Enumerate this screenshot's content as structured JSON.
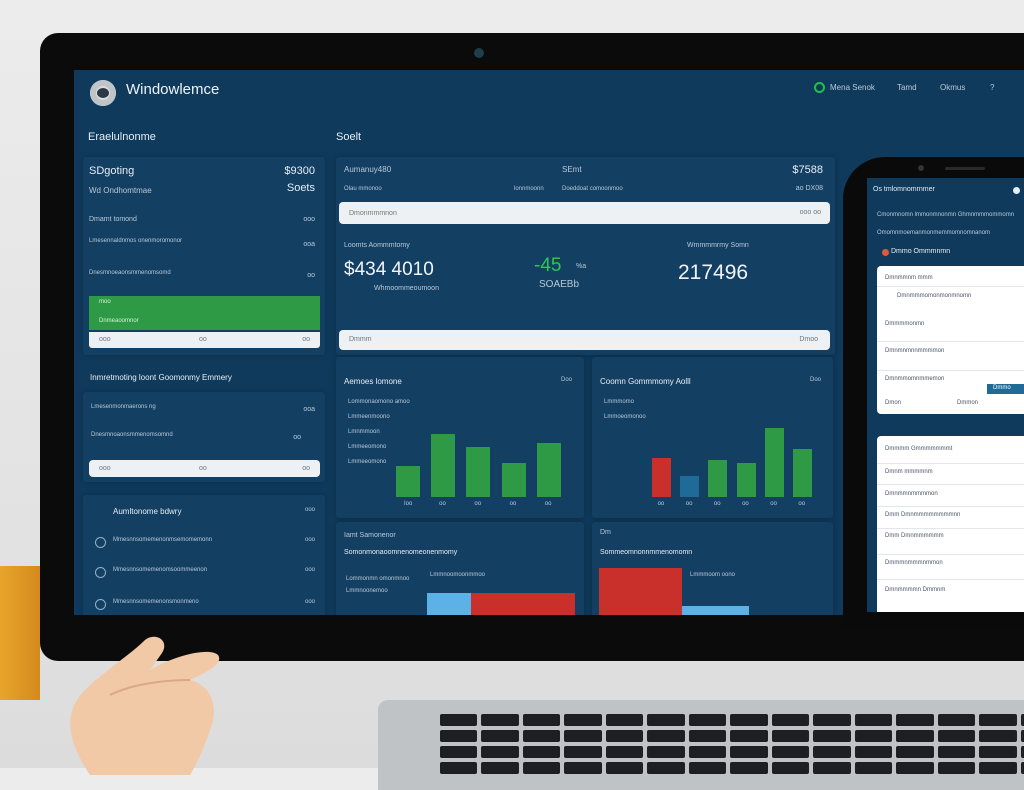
{
  "app": {
    "title": "Windowlemce",
    "nav": [
      "Mena Senok",
      "Tamd",
      "Okmus",
      "?"
    ]
  },
  "sections": {
    "left_title": "Eraelulnonme",
    "center_title": "Soelt"
  },
  "left_card1": {
    "title": "SDgoting",
    "value": "$9300",
    "sub": "Wd Ondhomtmae",
    "value2": "Soets",
    "row_label": "Dmamt tomond",
    "row_value": "ooo",
    "rows": [
      {
        "label": "Lmesennaldnmos onenmoromonor",
        "value": "ooa"
      },
      {
        "label": "Dnesmnoeaonsmmenomsomd",
        "value": "oo"
      }
    ],
    "green_label": "moo",
    "green_sub": "Dnmeaoomnor",
    "footer": [
      "ooo",
      "oo",
      "oo"
    ]
  },
  "left_card2": {
    "title": "Inmretmoting loont Goomonmy Emmery",
    "rows": [
      {
        "label": "Lmesenmonmaerons ng",
        "value": "ooa"
      },
      {
        "label": "Dnesmnoaonsmmenomsomnd",
        "value": "oo"
      }
    ],
    "footer": [
      "ooo",
      "oo",
      "oo"
    ]
  },
  "left_card3": {
    "title": "Aumltonome bdwry",
    "value": "ooo",
    "items": [
      {
        "label": "Mmesnnsomemenonmsemomemonn",
        "value": "ooo"
      },
      {
        "label": "Mmesnnsomemenomsoommeenon",
        "value": "ooo"
      },
      {
        "label": "Mmesnnsomemenonsmonmeno",
        "value": "ooo"
      }
    ]
  },
  "center_card": {
    "col1_title": "Aumanuy480",
    "col1_sub": "Olau mmonoo",
    "col1_right": "lonnmoonn",
    "col2_title": "SEmt",
    "col2_sub": "Doeddoat comoonmoo",
    "col3_title": "$7588",
    "col3_sub": "ao DX08",
    "search_placeholder": "Dmonmmmnon",
    "search_right": "ooo oo",
    "kpi1_label": "Loomts Aommmtomy",
    "kpi1_value": "$434 4010",
    "kpi1_sub": "Whmoommeoumoon",
    "kpi2_value": "-45",
    "kpi2_unit": "%a",
    "kpi2_sub": "SOAEBb",
    "kpi3_label": "Wmmmmrmy Somn",
    "kpi3_value": "217496",
    "footer_left": "Dmmm",
    "footer_right": "Dmoo"
  },
  "chart_data": [
    {
      "type": "bar",
      "title": "Aemoes lomone",
      "badge": "Doo",
      "legend": [
        "Lommonaomono amoo",
        "Lmmeenmoono",
        "Lmnmmoon",
        "Lmmeeomono",
        "Lmmeeomono"
      ],
      "categories": [
        "Ioo",
        "oo",
        "oo",
        "oo",
        "oo"
      ],
      "values": [
        37,
        74,
        59,
        40,
        63
      ],
      "ylim": [
        0,
        100
      ],
      "colors": [
        "#2e9a46",
        "#2e9a46",
        "#2e9a46",
        "#2e9a46",
        "#2e9a46"
      ]
    },
    {
      "type": "bar",
      "title": "Coomn Gommmomy Aolll",
      "badge": "Doo",
      "legend": [
        "Lmmmomo",
        "Lmmoeomonoo"
      ],
      "categories": [
        "oo",
        "oo",
        "oo",
        "oo",
        "oo",
        "oo"
      ],
      "values": [
        46,
        25,
        44,
        40,
        81,
        56
      ],
      "ylim": [
        0,
        100
      ],
      "colors": [
        "#c9302c",
        "#1f6a96",
        "#2e9a46",
        "#2e9a46",
        "#2e9a46",
        "#2e9a46"
      ]
    }
  ],
  "bottom_card1": {
    "title": "Iamt Samonenor",
    "sub": "Somonmonaoomnenomeonenmomy",
    "legend1": "Lommonmn omonmnoo",
    "legend2": "Lmmnoomoonmmoo",
    "legend3": "Lmmnoonemoo",
    "bars": [
      {
        "value": 30,
        "color": "#5cb2e6"
      },
      {
        "value": 70,
        "color": "#c9302c"
      }
    ]
  },
  "bottom_card2": {
    "title": "Dm",
    "sub": "Sommeomnonnmmenomomn",
    "legend": "Lmmmoom oono",
    "bars": [
      {
        "value": 55,
        "color": "#c9302c"
      },
      {
        "value": 45,
        "color": "#5cb2e6"
      }
    ]
  },
  "phone": {
    "header": "Os tmlomnomrnmer",
    "line1": "Cmonmnomn lmmonmnonmn Ghmnmmmommomn",
    "line2": "Omomnmoemanmonmemmomnomnanom",
    "badge_label": "Dmmo Ommmnmn",
    "card1": {
      "title": "Dmnmmnm mmm",
      "rows": [
        "Dmnmmmomonmonmnomn",
        "Dmmmmonmn",
        "Dmnmnmnnmmmmon",
        "Dmnmmomnmmemon"
      ],
      "footer_left": "Dmon",
      "footer_mid": "Dmmon",
      "button": "Dmmo"
    },
    "card2": {
      "title": "Dmmmm Gmmmmmmmt",
      "rows": [
        "Dmnm mmmmnm",
        "Dmnmmnmmmmon",
        "Dmm Dmnmmmmmmmmnn",
        "Dmm Dmnmmmmmm",
        "Dmmmnmmmnmmon",
        "Dmnmmmmn Dmmnm"
      ]
    }
  },
  "colors": {
    "screen": "#0f3a5c",
    "card": "#133f63",
    "green": "#2e9a46",
    "red": "#c9302c",
    "blue": "#1f6a96",
    "light_blue": "#5cb2e6",
    "status_green": "#1fbf4a"
  }
}
